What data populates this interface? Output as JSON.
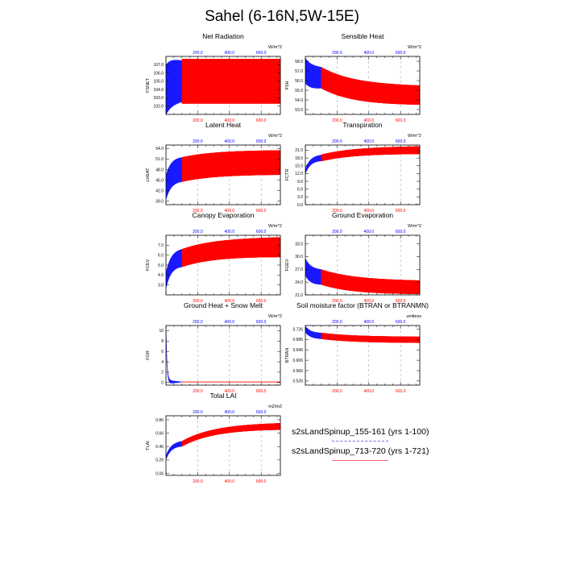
{
  "page": {
    "title": "Sahel (6-16N,5W-15E)"
  },
  "colors": {
    "run1": "#0000ff",
    "run2": "#ff0000",
    "grid": "#9a9a9a"
  },
  "legend": [
    {
      "label": "s2sLandSpinup_155-161 (yrs 1-100)",
      "color": "#0000ff"
    },
    {
      "label": "s2sLandSpinup_713-720 (yrs 1-721)",
      "color": "#ff0000"
    }
  ],
  "chart_data": [
    {
      "type": "line",
      "title": "Net Radiation",
      "ylabel": "FSNET",
      "units": "W/m^2",
      "xlim": [
        0,
        721
      ],
      "ylim": [
        101.0,
        108.0
      ],
      "yticks": [
        "102.0",
        "103.0",
        "104.0",
        "105.0",
        "106.0",
        "107.0"
      ],
      "xticks_top": [
        "200.0",
        "400.0",
        "600.0"
      ],
      "xticks_bottom": [
        "200.0",
        "400.0",
        "600.0"
      ],
      "series": [
        {
          "name": "s2sLandSpinup_155-161 (yrs 1-100)",
          "years": [
            1,
            100
          ],
          "mean_start": 104.0,
          "mean_end": 105.0,
          "amp_start": 3.0,
          "amp_end": 2.5
        },
        {
          "name": "s2sLandSpinup_713-720 (yrs 1-721)",
          "years": [
            100,
            721
          ],
          "mean_start": 105.0,
          "mean_end": 105.0,
          "amp_start": 2.7,
          "amp_end": 2.7
        }
      ]
    },
    {
      "type": "line",
      "title": "Sensible Heat",
      "ylabel": "FSH",
      "units": "W/m^2",
      "xlim": [
        0,
        721
      ],
      "ylim": [
        52.5,
        58.5
      ],
      "yticks": [
        "53.0",
        "54.0",
        "55.0",
        "56.0",
        "57.0",
        "58.0"
      ],
      "xticks_top": [
        "200.0",
        "400.0",
        "600.0"
      ],
      "xticks_bottom": [
        "200.0",
        "400.0",
        "600.0"
      ],
      "series": [
        {
          "name": "s2sLandSpinup_155-161 (yrs 1-100)",
          "years": [
            1,
            100
          ],
          "mean_start": 57.0,
          "mean_end": 56.3,
          "amp_start": 1.3,
          "amp_end": 1.1
        },
        {
          "name": "s2sLandSpinup_713-720 (yrs 1-721)",
          "years": [
            100,
            721
          ],
          "mean_start": 56.3,
          "mean_end": 54.5,
          "amp_start": 1.1,
          "amp_end": 1.0
        }
      ]
    },
    {
      "type": "line",
      "title": "Latent Heat",
      "ylabel": "LHEAT",
      "units": "W/m^2",
      "xlim": [
        0,
        721
      ],
      "ylim": [
        38.0,
        55.0
      ],
      "yticks": [
        "39.0",
        "42.0",
        "45.0",
        "48.0",
        "51.0",
        "54.0"
      ],
      "xticks_top": [
        "200.0",
        "400.0",
        "600.0"
      ],
      "xticks_bottom": [
        "200.0",
        "400.0",
        "600.0"
      ],
      "series": [
        {
          "name": "s2sLandSpinup_155-161 (yrs 1-100)",
          "years": [
            1,
            100
          ],
          "mean_start": 43.0,
          "mean_end": 48.0,
          "amp_start": 3.5,
          "amp_end": 3.5
        },
        {
          "name": "s2sLandSpinup_713-720 (yrs 1-721)",
          "years": [
            100,
            721
          ],
          "mean_start": 48.0,
          "mean_end": 50.0,
          "amp_start": 3.5,
          "amp_end": 3.5
        }
      ]
    },
    {
      "type": "line",
      "title": "Transpiration",
      "ylabel": "FCTR",
      "units": "W/m^2",
      "xlim": [
        0,
        721
      ],
      "ylim": [
        0.0,
        23.0
      ],
      "yticks": [
        "0.0",
        "3.0",
        "6.0",
        "9.0",
        "12.0",
        "15.0",
        "18.0",
        "21.0"
      ],
      "xticks_top": [
        "200.0",
        "400.0",
        "600.0"
      ],
      "xticks_bottom": [
        "200.0",
        "400.0",
        "600.0"
      ],
      "series": [
        {
          "name": "s2sLandSpinup_155-161 (yrs 1-100)",
          "years": [
            1,
            100
          ],
          "mean_start": 13.0,
          "mean_end": 18.0,
          "amp_start": 1.0,
          "amp_end": 1.2
        },
        {
          "name": "s2sLandSpinup_713-720 (yrs 1-721)",
          "years": [
            100,
            721
          ],
          "mean_start": 18.0,
          "mean_end": 21.0,
          "amp_start": 1.3,
          "amp_end": 1.5
        }
      ]
    },
    {
      "type": "line",
      "title": "Canopy Evaporation",
      "ylabel": "FCEV",
      "units": "W/m^2",
      "xlim": [
        0,
        721
      ],
      "ylim": [
        2.0,
        8.0
      ],
      "yticks": [
        "3.0",
        "4.0",
        "5.0",
        "6.0",
        "7.0"
      ],
      "xticks_top": [
        "200.0",
        "400.0",
        "600.0"
      ],
      "xticks_bottom": [
        "200.0",
        "400.0",
        "600.0"
      ],
      "series": [
        {
          "name": "s2sLandSpinup_155-161 (yrs 1-100)",
          "years": [
            1,
            100
          ],
          "mean_start": 3.5,
          "mean_end": 5.7,
          "amp_start": 0.8,
          "amp_end": 0.9
        },
        {
          "name": "s2sLandSpinup_713-720 (yrs 1-721)",
          "years": [
            100,
            721
          ],
          "mean_start": 5.7,
          "mean_end": 6.8,
          "amp_start": 0.9,
          "amp_end": 1.0
        }
      ]
    },
    {
      "type": "line",
      "title": "Ground Evaporation",
      "ylabel": "FGEV",
      "units": "W/m^2",
      "xlim": [
        0,
        721
      ],
      "ylim": [
        21.0,
        35.0
      ],
      "yticks": [
        "21.0",
        "24.0",
        "27.0",
        "30.0",
        "33.0"
      ],
      "xticks_top": [
        "200.0",
        "400.0",
        "600.0"
      ],
      "xticks_bottom": [
        "200.0",
        "400.0",
        "600.0"
      ],
      "series": [
        {
          "name": "s2sLandSpinup_155-161 (yrs 1-100)",
          "years": [
            1,
            100
          ],
          "mean_start": 27.5,
          "mean_end": 25.2,
          "amp_start": 2.0,
          "amp_end": 1.8
        },
        {
          "name": "s2sLandSpinup_713-720 (yrs 1-721)",
          "years": [
            100,
            721
          ],
          "mean_start": 25.2,
          "mean_end": 22.8,
          "amp_start": 1.8,
          "amp_end": 1.6
        }
      ]
    },
    {
      "type": "line",
      "title": "Ground Heat + Snow Melt",
      "ylabel": "FGR",
      "units": "W/m^2",
      "xlim": [
        0,
        721
      ],
      "ylim": [
        -0.5,
        11.0
      ],
      "yticks": [
        "0",
        "2",
        "4",
        "6",
        "8",
        "10"
      ],
      "xticks_top": [
        "200.0",
        "400.0",
        "600.0"
      ],
      "xticks_bottom": [
        "200.0",
        "400.0",
        "600.0"
      ],
      "series": [
        {
          "name": "s2sLandSpinup_155-161 (yrs 1-100)",
          "years": [
            1,
            100
          ],
          "mean_start": 9.5,
          "mean_end": 0.1,
          "amp_start": 0.4,
          "amp_end": 0.05,
          "decay": 6
        },
        {
          "name": "s2sLandSpinup_713-720 (yrs 1-721)",
          "years": [
            100,
            721
          ],
          "mean_start": 0.1,
          "mean_end": 0.1,
          "amp_start": 0.05,
          "amp_end": 0.05
        }
      ]
    },
    {
      "type": "line",
      "title": "Soil moisture factor (BTRAN or BTRANMN)",
      "ylabel": "BTRAN",
      "units": "unitless",
      "xlim": [
        0,
        721
      ],
      "ylim": [
        0.51,
        0.74
      ],
      "yticks": [
        "0.526",
        "0.566",
        "0.606",
        "0.646",
        "0.686",
        "0.726"
      ],
      "xticks_top": [
        "200.0",
        "400.0",
        "600.0"
      ],
      "xticks_bottom": [
        "200.0",
        "400.0",
        "600.0"
      ],
      "series": [
        {
          "name": "s2sLandSpinup_155-161 (yrs 1-100)",
          "years": [
            1,
            100
          ],
          "mean_start": 0.725,
          "mean_end": 0.7,
          "amp_start": 0.012,
          "amp_end": 0.012
        },
        {
          "name": "s2sLandSpinup_713-720 (yrs 1-721)",
          "years": [
            100,
            721
          ],
          "mean_start": 0.7,
          "mean_end": 0.685,
          "amp_start": 0.012,
          "amp_end": 0.012
        }
      ]
    },
    {
      "type": "line",
      "title": "Total LAI",
      "ylabel": "TLAI",
      "units": "m2/m2",
      "xlim": [
        0,
        721
      ],
      "ylim": [
        0.03,
        0.92
      ],
      "yticks": [
        "0.06",
        "0.26",
        "0.46",
        "0.66",
        "0.86"
      ],
      "xticks_top": [
        "200.0",
        "400.0",
        "600.0"
      ],
      "xticks_bottom": [
        "200.0",
        "400.0",
        "600.0"
      ],
      "series": [
        {
          "name": "s2sLandSpinup_155-161 (yrs 1-100)",
          "years": [
            1,
            100
          ],
          "mean_start": 0.3,
          "mean_end": 0.5,
          "amp_start": 0.03,
          "amp_end": 0.04
        },
        {
          "name": "s2sLandSpinup_713-720 (yrs 1-721)",
          "years": [
            100,
            721
          ],
          "mean_start": 0.5,
          "mean_end": 0.76,
          "amp_start": 0.04,
          "amp_end": 0.05
        }
      ]
    }
  ]
}
